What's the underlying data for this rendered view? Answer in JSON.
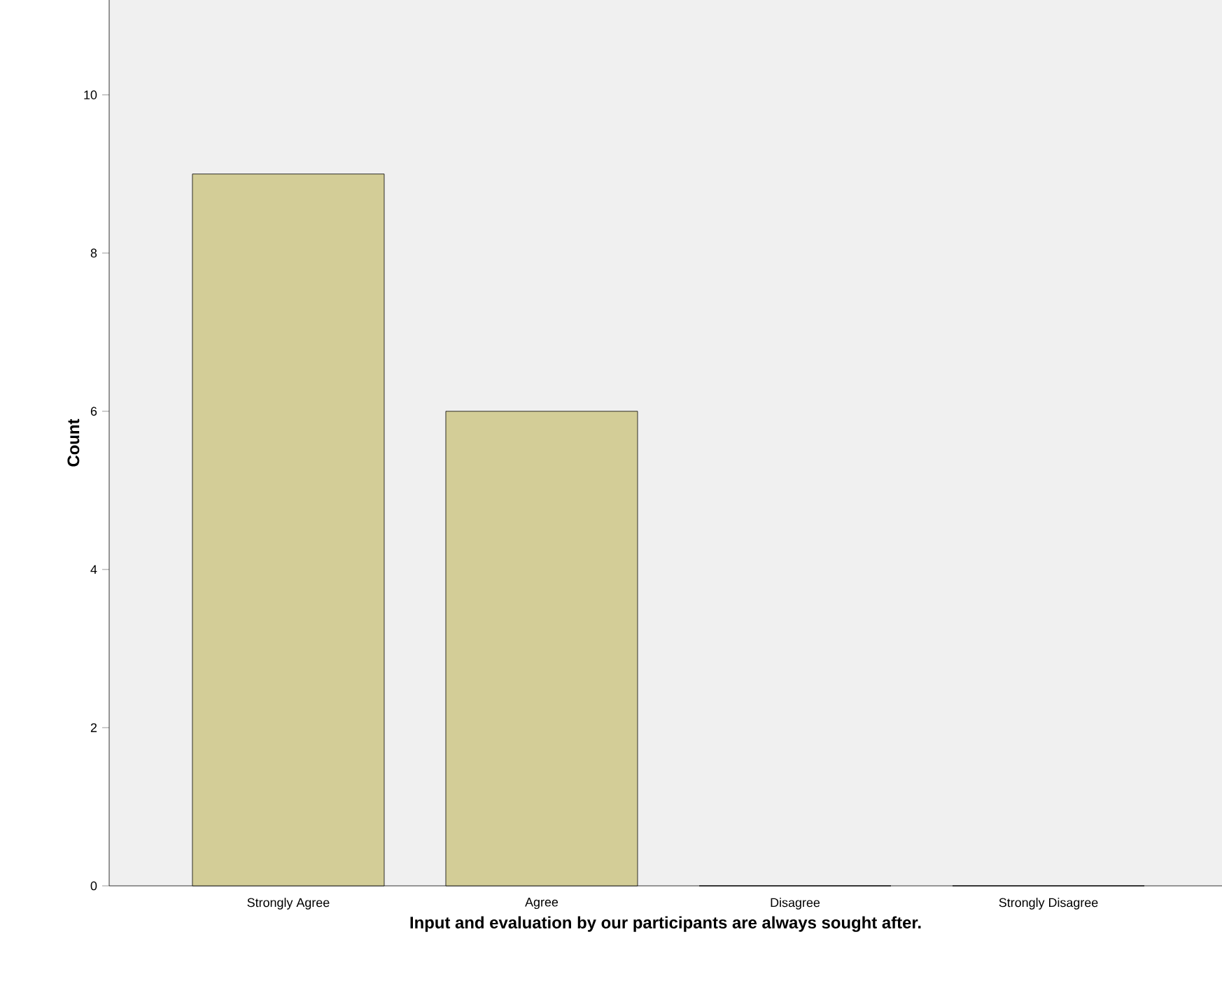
{
  "chart_data": {
    "type": "bar",
    "xlabel": "Input and evaluation by our participants are always sought after.",
    "ylabel": "Count",
    "categories": [
      "Strongly Agree",
      "Agree",
      "Disagree",
      "Strongly Disagree"
    ],
    "values": [
      9,
      6,
      0,
      0
    ],
    "color": "#d3cd97",
    "ylim": [
      0,
      11.2
    ],
    "yticks": [
      0,
      2,
      4,
      6,
      8,
      10
    ]
  }
}
